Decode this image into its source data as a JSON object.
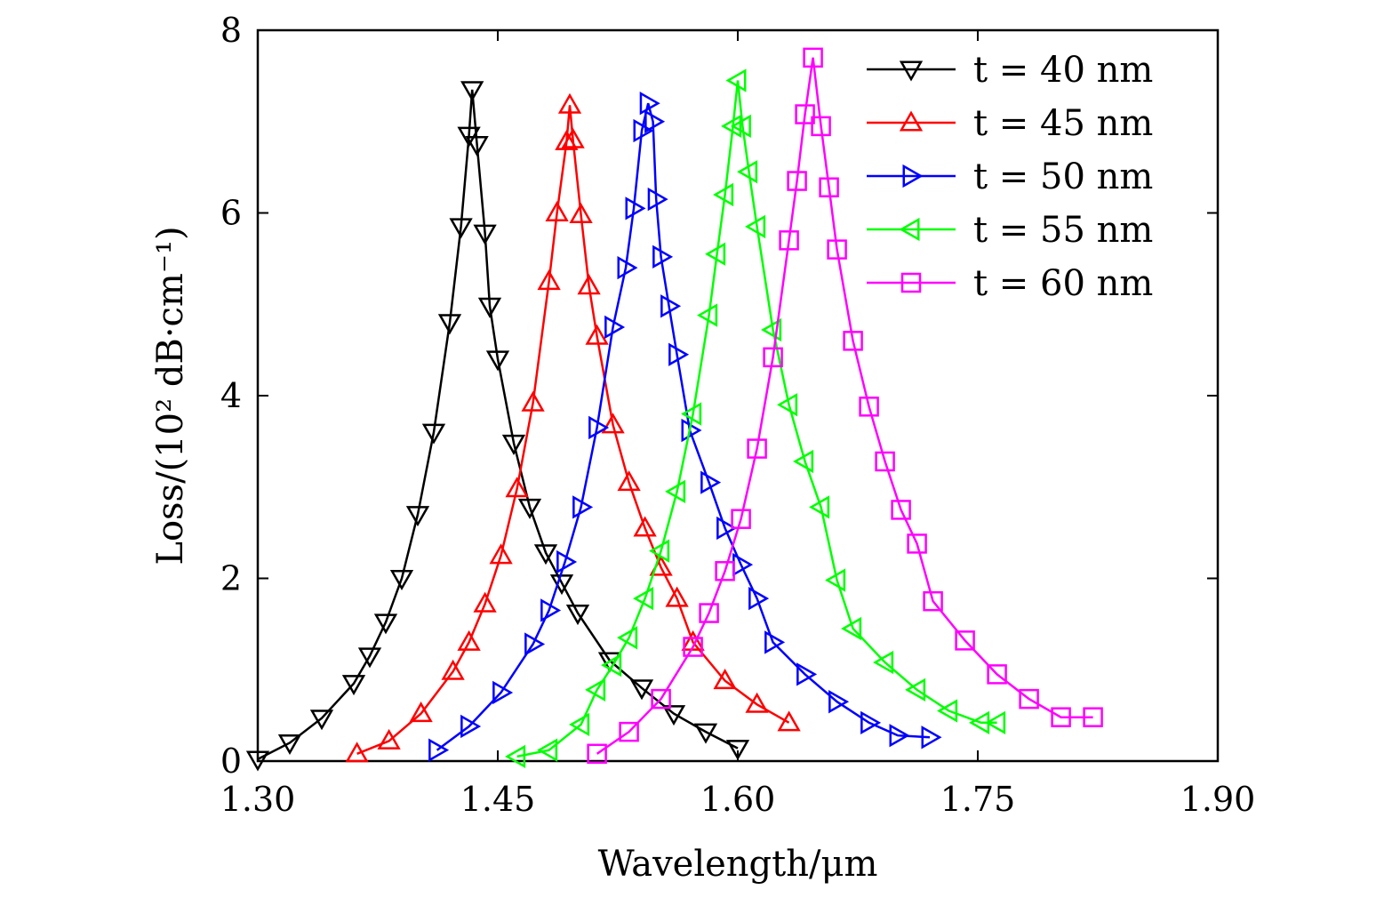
{
  "chart_data": {
    "type": "line",
    "xlabel": "Wavelength/μm",
    "ylabel": "Loss/(10² dB·cm⁻¹)",
    "xlim": [
      1.3,
      1.9
    ],
    "ylim": [
      0,
      8
    ],
    "xticks": [
      "1.30",
      "1.45",
      "1.60",
      "1.75",
      "1.90"
    ],
    "yticks": [
      "0",
      "2",
      "4",
      "6",
      "8"
    ],
    "grid": false,
    "legend_position": "top-right",
    "series": [
      {
        "name": "t = 40 nm",
        "color": "#000000",
        "marker": "triangle-down",
        "x": [
          1.3,
          1.32,
          1.34,
          1.36,
          1.37,
          1.38,
          1.39,
          1.4,
          1.41,
          1.42,
          1.427,
          1.432,
          1.434,
          1.437,
          1.442,
          1.445,
          1.45,
          1.46,
          1.47,
          1.48,
          1.49,
          1.5,
          1.52,
          1.54,
          1.56,
          1.58,
          1.6
        ],
        "y": [
          0.02,
          0.2,
          0.47,
          0.85,
          1.15,
          1.52,
          2.0,
          2.7,
          3.6,
          4.8,
          5.85,
          6.85,
          7.35,
          6.75,
          5.78,
          4.98,
          4.4,
          3.48,
          2.78,
          2.28,
          1.95,
          1.62,
          1.1,
          0.8,
          0.52,
          0.32,
          0.14
        ]
      },
      {
        "name": "t = 45 nm",
        "color": "#ff0000",
        "marker": "triangle-up",
        "x": [
          1.362,
          1.382,
          1.402,
          1.422,
          1.432,
          1.442,
          1.452,
          1.462,
          1.472,
          1.482,
          1.487,
          1.493,
          1.495,
          1.497,
          1.502,
          1.507,
          1.512,
          1.522,
          1.532,
          1.542,
          1.552,
          1.562,
          1.572,
          1.592,
          1.612,
          1.632
        ],
        "y": [
          0.08,
          0.22,
          0.52,
          0.98,
          1.3,
          1.72,
          2.25,
          2.98,
          3.92,
          5.25,
          6.0,
          6.78,
          7.18,
          6.8,
          5.98,
          5.2,
          4.65,
          3.68,
          3.05,
          2.55,
          2.12,
          1.78,
          1.3,
          0.88,
          0.62,
          0.42
        ]
      },
      {
        "name": "t = 50 nm",
        "color": "#0000ff",
        "marker": "triangle-right",
        "x": [
          1.412,
          1.432,
          1.452,
          1.472,
          1.482,
          1.492,
          1.502,
          1.512,
          1.522,
          1.53,
          1.535,
          1.54,
          1.544,
          1.547,
          1.549,
          1.552,
          1.557,
          1.562,
          1.57,
          1.582,
          1.592,
          1.602,
          1.612,
          1.622,
          1.642,
          1.662,
          1.682,
          1.7,
          1.72
        ],
        "y": [
          0.12,
          0.38,
          0.75,
          1.28,
          1.65,
          2.18,
          2.78,
          3.65,
          4.75,
          5.4,
          6.05,
          6.9,
          7.2,
          7.0,
          6.15,
          5.52,
          4.98,
          4.45,
          3.62,
          3.05,
          2.55,
          2.15,
          1.78,
          1.3,
          0.95,
          0.65,
          0.42,
          0.28,
          0.26
        ]
      },
      {
        "name": "t = 55 nm",
        "color": "#00ff00",
        "marker": "triangle-left",
        "x": [
          1.462,
          1.482,
          1.502,
          1.512,
          1.522,
          1.532,
          1.542,
          1.552,
          1.562,
          1.572,
          1.582,
          1.587,
          1.592,
          1.597,
          1.6,
          1.603,
          1.607,
          1.612,
          1.622,
          1.632,
          1.642,
          1.652,
          1.662,
          1.672,
          1.692,
          1.712,
          1.732,
          1.752,
          1.762
        ],
        "y": [
          0.05,
          0.12,
          0.4,
          0.78,
          1.05,
          1.35,
          1.78,
          2.3,
          2.95,
          3.8,
          4.88,
          5.55,
          6.2,
          6.95,
          7.45,
          6.95,
          6.45,
          5.85,
          4.72,
          3.9,
          3.28,
          2.78,
          1.98,
          1.45,
          1.08,
          0.78,
          0.55,
          0.42,
          0.42
        ]
      },
      {
        "name": "t = 60 nm",
        "color": "#ff00ff",
        "marker": "square",
        "x": [
          1.512,
          1.532,
          1.552,
          1.572,
          1.582,
          1.592,
          1.602,
          1.612,
          1.622,
          1.632,
          1.637,
          1.642,
          1.647,
          1.652,
          1.657,
          1.662,
          1.672,
          1.682,
          1.692,
          1.702,
          1.712,
          1.722,
          1.742,
          1.762,
          1.782,
          1.802,
          1.822
        ],
        "y": [
          0.08,
          0.32,
          0.68,
          1.25,
          1.62,
          2.08,
          2.65,
          3.42,
          4.42,
          5.7,
          6.35,
          7.08,
          7.7,
          6.95,
          6.28,
          5.6,
          4.6,
          3.88,
          3.28,
          2.75,
          2.38,
          1.75,
          1.32,
          0.95,
          0.68,
          0.48,
          0.48
        ]
      }
    ]
  }
}
